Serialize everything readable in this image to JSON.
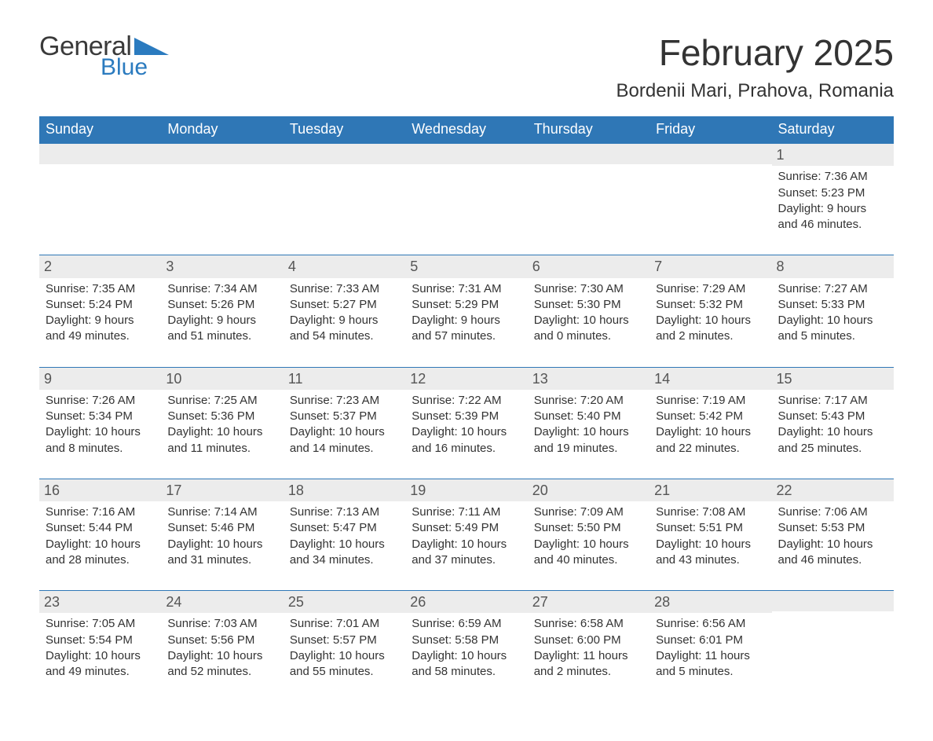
{
  "colors": {
    "header_bg": "#2f77b6",
    "header_text": "#ffffff",
    "band_bg": "#ececec",
    "body_text": "#333333",
    "rule": "#2f77b6",
    "logo_gray": "#3a3a3a",
    "logo_blue": "#2b7bbf"
  },
  "logo": {
    "word1": "General",
    "word2": "Blue"
  },
  "title": "February 2025",
  "location": "Bordenii Mari, Prahova, Romania",
  "weekday_labels": [
    "Sunday",
    "Monday",
    "Tuesday",
    "Wednesday",
    "Thursday",
    "Friday",
    "Saturday"
  ],
  "weeks": [
    [
      {
        "day": "",
        "sunrise": "",
        "sunset": "",
        "daylight": ""
      },
      {
        "day": "",
        "sunrise": "",
        "sunset": "",
        "daylight": ""
      },
      {
        "day": "",
        "sunrise": "",
        "sunset": "",
        "daylight": ""
      },
      {
        "day": "",
        "sunrise": "",
        "sunset": "",
        "daylight": ""
      },
      {
        "day": "",
        "sunrise": "",
        "sunset": "",
        "daylight": ""
      },
      {
        "day": "",
        "sunrise": "",
        "sunset": "",
        "daylight": ""
      },
      {
        "day": "1",
        "sunrise": "Sunrise: 7:36 AM",
        "sunset": "Sunset: 5:23 PM",
        "daylight": "Daylight: 9 hours and 46 minutes."
      }
    ],
    [
      {
        "day": "2",
        "sunrise": "Sunrise: 7:35 AM",
        "sunset": "Sunset: 5:24 PM",
        "daylight": "Daylight: 9 hours and 49 minutes."
      },
      {
        "day": "3",
        "sunrise": "Sunrise: 7:34 AM",
        "sunset": "Sunset: 5:26 PM",
        "daylight": "Daylight: 9 hours and 51 minutes."
      },
      {
        "day": "4",
        "sunrise": "Sunrise: 7:33 AM",
        "sunset": "Sunset: 5:27 PM",
        "daylight": "Daylight: 9 hours and 54 minutes."
      },
      {
        "day": "5",
        "sunrise": "Sunrise: 7:31 AM",
        "sunset": "Sunset: 5:29 PM",
        "daylight": "Daylight: 9 hours and 57 minutes."
      },
      {
        "day": "6",
        "sunrise": "Sunrise: 7:30 AM",
        "sunset": "Sunset: 5:30 PM",
        "daylight": "Daylight: 10 hours and 0 minutes."
      },
      {
        "day": "7",
        "sunrise": "Sunrise: 7:29 AM",
        "sunset": "Sunset: 5:32 PM",
        "daylight": "Daylight: 10 hours and 2 minutes."
      },
      {
        "day": "8",
        "sunrise": "Sunrise: 7:27 AM",
        "sunset": "Sunset: 5:33 PM",
        "daylight": "Daylight: 10 hours and 5 minutes."
      }
    ],
    [
      {
        "day": "9",
        "sunrise": "Sunrise: 7:26 AM",
        "sunset": "Sunset: 5:34 PM",
        "daylight": "Daylight: 10 hours and 8 minutes."
      },
      {
        "day": "10",
        "sunrise": "Sunrise: 7:25 AM",
        "sunset": "Sunset: 5:36 PM",
        "daylight": "Daylight: 10 hours and 11 minutes."
      },
      {
        "day": "11",
        "sunrise": "Sunrise: 7:23 AM",
        "sunset": "Sunset: 5:37 PM",
        "daylight": "Daylight: 10 hours and 14 minutes."
      },
      {
        "day": "12",
        "sunrise": "Sunrise: 7:22 AM",
        "sunset": "Sunset: 5:39 PM",
        "daylight": "Daylight: 10 hours and 16 minutes."
      },
      {
        "day": "13",
        "sunrise": "Sunrise: 7:20 AM",
        "sunset": "Sunset: 5:40 PM",
        "daylight": "Daylight: 10 hours and 19 minutes."
      },
      {
        "day": "14",
        "sunrise": "Sunrise: 7:19 AM",
        "sunset": "Sunset: 5:42 PM",
        "daylight": "Daylight: 10 hours and 22 minutes."
      },
      {
        "day": "15",
        "sunrise": "Sunrise: 7:17 AM",
        "sunset": "Sunset: 5:43 PM",
        "daylight": "Daylight: 10 hours and 25 minutes."
      }
    ],
    [
      {
        "day": "16",
        "sunrise": "Sunrise: 7:16 AM",
        "sunset": "Sunset: 5:44 PM",
        "daylight": "Daylight: 10 hours and 28 minutes."
      },
      {
        "day": "17",
        "sunrise": "Sunrise: 7:14 AM",
        "sunset": "Sunset: 5:46 PM",
        "daylight": "Daylight: 10 hours and 31 minutes."
      },
      {
        "day": "18",
        "sunrise": "Sunrise: 7:13 AM",
        "sunset": "Sunset: 5:47 PM",
        "daylight": "Daylight: 10 hours and 34 minutes."
      },
      {
        "day": "19",
        "sunrise": "Sunrise: 7:11 AM",
        "sunset": "Sunset: 5:49 PM",
        "daylight": "Daylight: 10 hours and 37 minutes."
      },
      {
        "day": "20",
        "sunrise": "Sunrise: 7:09 AM",
        "sunset": "Sunset: 5:50 PM",
        "daylight": "Daylight: 10 hours and 40 minutes."
      },
      {
        "day": "21",
        "sunrise": "Sunrise: 7:08 AM",
        "sunset": "Sunset: 5:51 PM",
        "daylight": "Daylight: 10 hours and 43 minutes."
      },
      {
        "day": "22",
        "sunrise": "Sunrise: 7:06 AM",
        "sunset": "Sunset: 5:53 PM",
        "daylight": "Daylight: 10 hours and 46 minutes."
      }
    ],
    [
      {
        "day": "23",
        "sunrise": "Sunrise: 7:05 AM",
        "sunset": "Sunset: 5:54 PM",
        "daylight": "Daylight: 10 hours and 49 minutes."
      },
      {
        "day": "24",
        "sunrise": "Sunrise: 7:03 AM",
        "sunset": "Sunset: 5:56 PM",
        "daylight": "Daylight: 10 hours and 52 minutes."
      },
      {
        "day": "25",
        "sunrise": "Sunrise: 7:01 AM",
        "sunset": "Sunset: 5:57 PM",
        "daylight": "Daylight: 10 hours and 55 minutes."
      },
      {
        "day": "26",
        "sunrise": "Sunrise: 6:59 AM",
        "sunset": "Sunset: 5:58 PM",
        "daylight": "Daylight: 10 hours and 58 minutes."
      },
      {
        "day": "27",
        "sunrise": "Sunrise: 6:58 AM",
        "sunset": "Sunset: 6:00 PM",
        "daylight": "Daylight: 11 hours and 2 minutes."
      },
      {
        "day": "28",
        "sunrise": "Sunrise: 6:56 AM",
        "sunset": "Sunset: 6:01 PM",
        "daylight": "Daylight: 11 hours and 5 minutes."
      },
      {
        "day": "",
        "sunrise": "",
        "sunset": "",
        "daylight": ""
      }
    ]
  ]
}
